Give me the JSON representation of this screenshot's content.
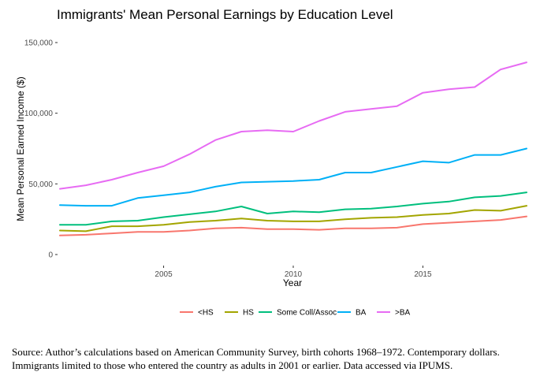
{
  "chart_data": {
    "type": "line",
    "title": "Immigrants' Mean Personal Earnings by Education Level",
    "xlabel": "Year",
    "ylabel": "Mean Personal Earned Income ($)",
    "xlim": [
      2001,
      2019
    ],
    "ylim": [
      0,
      150000
    ],
    "x_ticks": [
      2005,
      2010,
      2015
    ],
    "x_tick_labels": [
      "2005",
      "2010",
      "2015"
    ],
    "y_ticks": [
      0,
      50000,
      100000,
      150000
    ],
    "y_tick_labels": [
      "0",
      "50,000",
      "100,000",
      "150,000"
    ],
    "grid": false,
    "legend_position": "bottom",
    "x": [
      2001,
      2002,
      2003,
      2004,
      2005,
      2006,
      2007,
      2008,
      2009,
      2010,
      2011,
      2012,
      2013,
      2014,
      2015,
      2016,
      2017,
      2018,
      2019
    ],
    "series": [
      {
        "name": "<HS",
        "color": "#F8766D",
        "values": [
          13500,
          14000,
          15000,
          16000,
          16000,
          17000,
          18500,
          19000,
          18000,
          18000,
          17500,
          18500,
          18500,
          19000,
          21500,
          22500,
          23500,
          24500,
          27000
        ]
      },
      {
        "name": "HS",
        "color": "#A3A500",
        "values": [
          17000,
          16500,
          20000,
          20000,
          21000,
          23000,
          24000,
          25500,
          24000,
          23500,
          23500,
          25000,
          26000,
          26500,
          28000,
          29000,
          31500,
          31000,
          34500
        ]
      },
      {
        "name": "Some Coll/Assoc",
        "color": "#00BF7D",
        "values": [
          21000,
          21000,
          23500,
          24000,
          26500,
          28500,
          30500,
          34000,
          29000,
          30500,
          30000,
          32000,
          32500,
          34000,
          36000,
          37500,
          40500,
          41500,
          44000
        ]
      },
      {
        "name": "BA",
        "color": "#00B0F6",
        "values": [
          35000,
          34500,
          34500,
          40000,
          42000,
          44000,
          48000,
          51000,
          51500,
          52000,
          53000,
          58000,
          58000,
          62000,
          66000,
          65000,
          70500,
          70500,
          75000
        ]
      },
      {
        "name": ">BA",
        "color": "#E76BF3",
        "values": [
          46500,
          49000,
          53000,
          58000,
          62500,
          71000,
          81000,
          87000,
          88000,
          87000,
          94500,
          101000,
          103000,
          105000,
          114500,
          117000,
          118500,
          131000,
          136000
        ]
      }
    ]
  },
  "caption": {
    "line1": "Source: Author’s calculations based on American Community Survey, birth cohorts 1968–1972. Contemporary dollars.",
    "line2": "Immigrants limited to those who entered the country as adults in 2001 or earlier. Data accessed via IPUMS."
  }
}
